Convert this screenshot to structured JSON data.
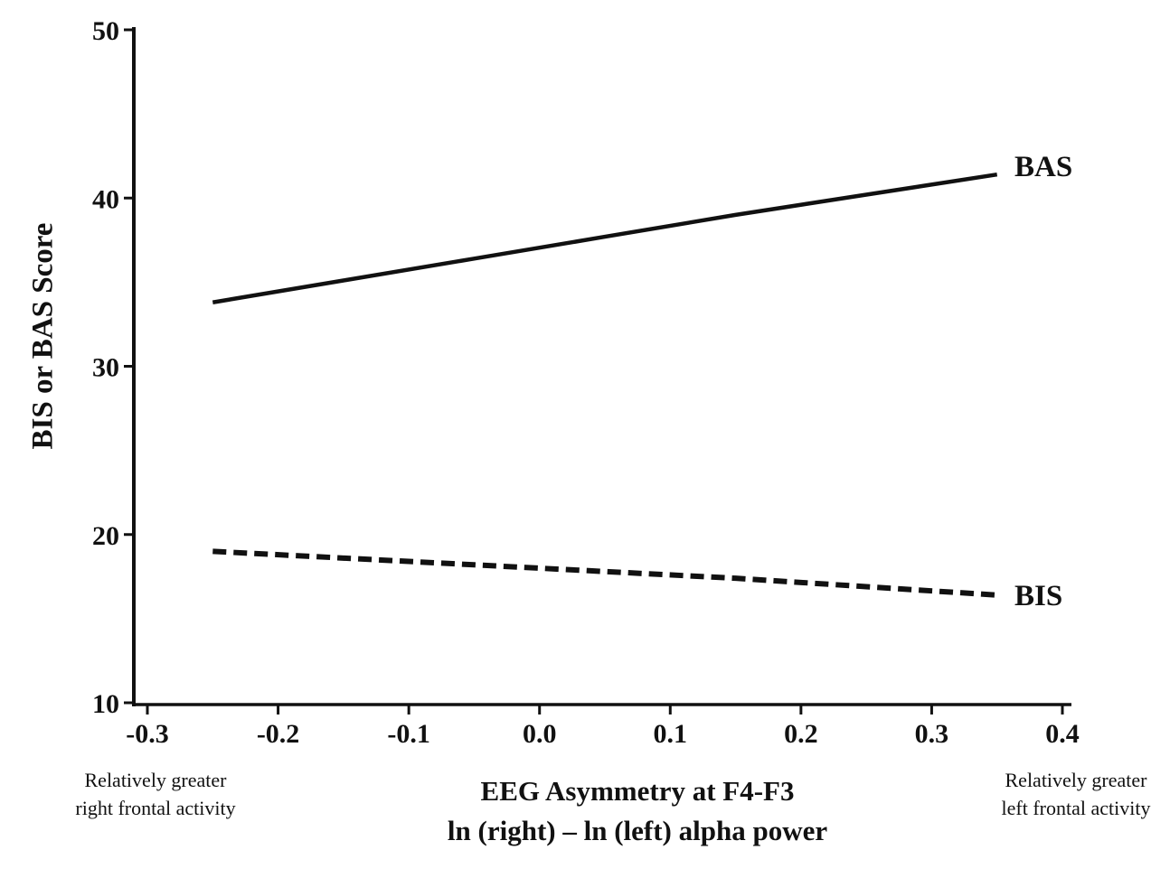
{
  "figure": {
    "background": "#ffffff"
  },
  "chart_data": {
    "type": "line",
    "title": "",
    "ylabel": "BIS or BAS Score",
    "xlabel_line1": "EEG Asymmetry at F4-F3",
    "xlabel_line2": "ln (right) – ln (left) alpha power",
    "xlim": [
      -0.3,
      0.4
    ],
    "ylim": [
      10,
      50
    ],
    "grid": false,
    "legend": "inline labels at right end of each line",
    "line_color": "#111111",
    "x_ticks": [
      "-0.3",
      "-0.2",
      "-0.1",
      "0.0",
      "0.1",
      "0.2",
      "0.3",
      "0.4"
    ],
    "x_tick_values": [
      -0.3,
      -0.2,
      -0.1,
      0.0,
      0.1,
      0.2,
      0.3,
      0.4
    ],
    "y_ticks": [
      "10",
      "20",
      "30",
      "40",
      "50"
    ],
    "y_tick_values": [
      10,
      20,
      30,
      40,
      50
    ],
    "series": [
      {
        "name": "BAS",
        "label": "BAS",
        "style": "solid",
        "x": [
          -0.25,
          -0.15,
          -0.05,
          0.05,
          0.15,
          0.25,
          0.35
        ],
        "y": [
          33.8,
          35.1,
          36.4,
          37.7,
          39.0,
          40.2,
          41.4
        ]
      },
      {
        "name": "BIS",
        "label": "BIS",
        "style": "dashed",
        "x": [
          -0.25,
          -0.15,
          -0.05,
          0.05,
          0.15,
          0.25,
          0.35
        ],
        "y": [
          19.0,
          18.6,
          18.2,
          17.8,
          17.4,
          16.9,
          16.4
        ]
      }
    ],
    "annotations": [
      {
        "position": "bottom-left",
        "lines": [
          "Relatively greater",
          "right frontal activity"
        ]
      },
      {
        "position": "bottom-right",
        "lines": [
          "Relatively greater",
          "left frontal activity"
        ]
      }
    ]
  }
}
